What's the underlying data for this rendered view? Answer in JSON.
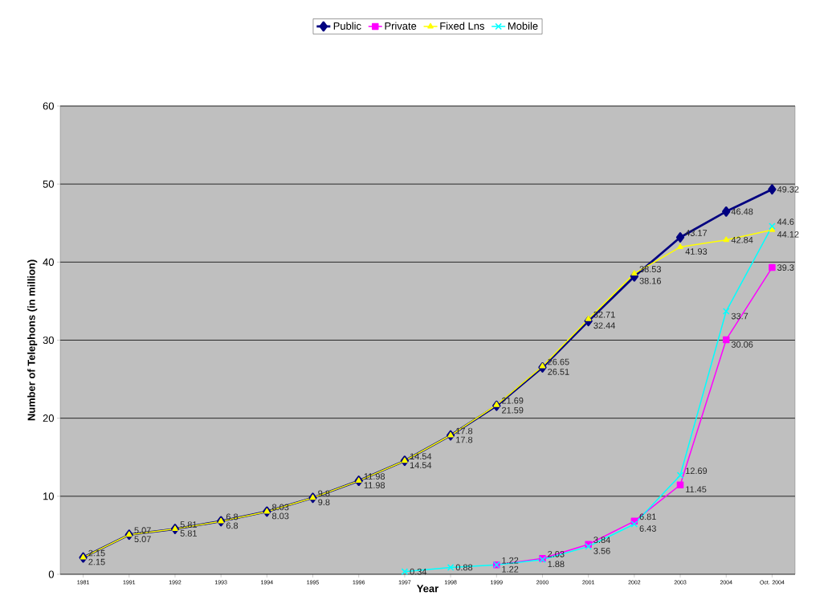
{
  "chart_data": {
    "type": "line",
    "xlabel": "Year",
    "ylabel": "Number of Telephons (in million)",
    "categories": [
      "1981",
      "1991",
      "1992",
      "1993",
      "1994",
      "1995",
      "1996",
      "1997",
      "1998",
      "1999",
      "2000",
      "2001",
      "2002",
      "2003",
      "2004",
      "Oct. 2004"
    ],
    "series": [
      {
        "name": "Public",
        "color": "#000080",
        "marker": "diamond",
        "values": [
          2.15,
          5.07,
          5.81,
          6.8,
          8.03,
          9.8,
          11.98,
          14.54,
          17.8,
          21.59,
          26.51,
          32.44,
          38.16,
          43.17,
          46.48,
          49.32
        ]
      },
      {
        "name": "Private",
        "color": "#ff00ff",
        "marker": "square",
        "values": [
          null,
          null,
          null,
          null,
          null,
          null,
          null,
          null,
          null,
          1.22,
          2.03,
          3.84,
          6.81,
          11.45,
          30.06,
          39.3
        ]
      },
      {
        "name": "Fixed Lns",
        "color": "#ffff00",
        "marker": "triangle",
        "values": [
          2.15,
          5.07,
          5.81,
          6.8,
          8.03,
          9.8,
          11.98,
          14.54,
          17.8,
          21.69,
          26.65,
          32.71,
          38.53,
          41.93,
          42.84,
          44.12
        ]
      },
      {
        "name": "Mobile",
        "color": "#00ffff",
        "marker": "cross",
        "values": [
          null,
          null,
          null,
          null,
          null,
          null,
          null,
          0.34,
          0.88,
          1.22,
          1.88,
          3.56,
          6.43,
          12.69,
          33.7,
          44.6
        ]
      }
    ],
    "ylim": [
      0,
      60
    ],
    "yticks": [
      0,
      10,
      20,
      30,
      40,
      50,
      60
    ],
    "grid": "y",
    "legend": "top",
    "data_labels": true
  }
}
